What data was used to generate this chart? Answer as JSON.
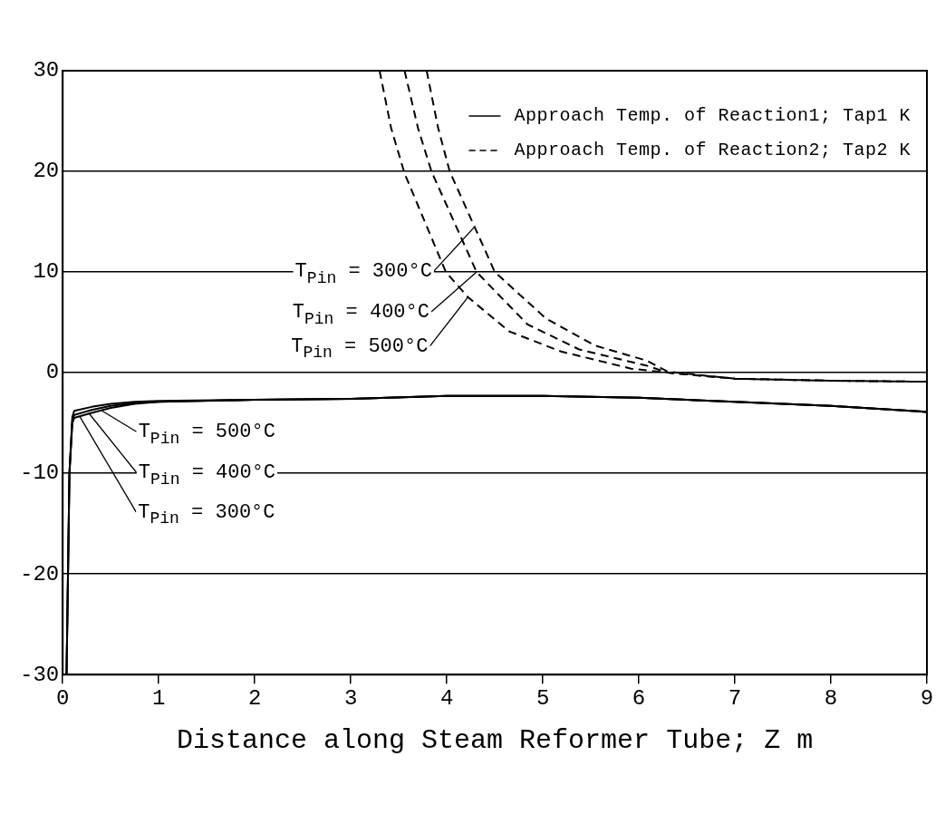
{
  "chart_data": {
    "type": "line",
    "xlabel": "Distance along Steam Reformer Tube; Z m",
    "xlim": [
      0,
      9
    ],
    "xticks": [
      0,
      1,
      2,
      3,
      4,
      5,
      6,
      7,
      8,
      9
    ],
    "ylim": [
      -30,
      30
    ],
    "yticks": [
      -30,
      -20,
      -10,
      0,
      10,
      20,
      30
    ],
    "grid": "y",
    "legend": "top right",
    "marker": "none",
    "series": [
      {
        "name": "Approach Temp. of Reaction1; Tap1 K",
        "color": "#000000",
        "line_style": "solid",
        "x": [
          0.04,
          0.07,
          0.1,
          0.12,
          0.3,
          0.5,
          0.75,
          1,
          2,
          3,
          4,
          5,
          6,
          7,
          8,
          9
        ],
        "values": [
          -30,
          -10,
          -5,
          -4.5,
          -4,
          -3.5,
          -3.1,
          -2.9,
          -2.7,
          -2.6,
          -2.3,
          -2.3,
          -2.5,
          -2.9,
          -3.3,
          -3.9
        ]
      },
      {
        "color": "#000000",
        "line_style": "solid",
        "x": [
          0.04,
          0.07,
          0.1,
          0.12,
          0.3,
          0.5,
          0.75,
          1,
          2,
          3,
          4,
          5,
          6,
          7,
          8,
          9
        ],
        "values": [
          -30,
          -10,
          -4.8,
          -4.2,
          -3.7,
          -3.3,
          -3,
          -2.9,
          -2.7,
          -2.6,
          -2.3,
          -2.3,
          -2.5,
          -2.9,
          -3.3,
          -3.9
        ]
      },
      {
        "color": "#000000",
        "line_style": "solid",
        "x": [
          0.04,
          0.07,
          0.1,
          0.12,
          0.3,
          0.5,
          0.75,
          1,
          2,
          3,
          4,
          5,
          6,
          7,
          8,
          9
        ],
        "values": [
          -30,
          -10,
          -4.4,
          -3.8,
          -3.4,
          -3.1,
          -2.9,
          -2.8,
          -2.7,
          -2.6,
          -2.3,
          -2.3,
          -2.5,
          -2.9,
          -3.3,
          -3.9
        ]
      },
      {
        "name": "Approach Temp. of Reaction2; Tap2 K",
        "color": "#000000",
        "line_style": "dashed",
        "x": [
          3.3,
          3.42,
          3.56,
          3.99,
          4.22,
          4.65,
          5.19,
          5.92,
          6.3,
          7,
          8,
          9
        ],
        "values": [
          30,
          24.3,
          19.8,
          10,
          7.5,
          4.1,
          2.1,
          0.4,
          0,
          -0.6,
          -0.8,
          -0.9
        ]
      },
      {
        "color": "#000000",
        "line_style": "dashed",
        "x": [
          3.56,
          3.7,
          3.84,
          4.31,
          4.84,
          5.38,
          6.08,
          6.3,
          7,
          8,
          9
        ],
        "values": [
          30,
          24.3,
          20,
          10,
          4.8,
          2.3,
          0.7,
          0,
          -0.6,
          -0.8,
          -0.9
        ]
      },
      {
        "color": "#000000",
        "line_style": "dashed",
        "x": [
          3.79,
          3.91,
          4.03,
          4.5,
          5.03,
          5.54,
          6.08,
          6.3,
          7,
          8,
          9
        ],
        "values": [
          30,
          24.3,
          20,
          10,
          5.4,
          2.7,
          1.2,
          0.1,
          -0.6,
          -0.8,
          -0.9
        ]
      }
    ],
    "annotations": [
      {
        "text": "T$_{Pin}$ = 300°C",
        "x": 4.29,
        "y": 14.5
      },
      {
        "text": "T$_{Pin}$ = 400°C",
        "x": 4.31,
        "y": 10
      },
      {
        "text": "T$_{Pin}$ = 500°C",
        "x": 4.22,
        "y": 7.5
      },
      {
        "text": "T$_{Pin}$ = 500°C",
        "x": 0.41,
        "y": -3.8
      },
      {
        "text": "T$_{Pin}$ = 400°C",
        "x": 0.27,
        "y": -4
      },
      {
        "text": "T$_{Pin}$ = 300°C",
        "x": 0.18,
        "y": -4.4
      }
    ]
  }
}
